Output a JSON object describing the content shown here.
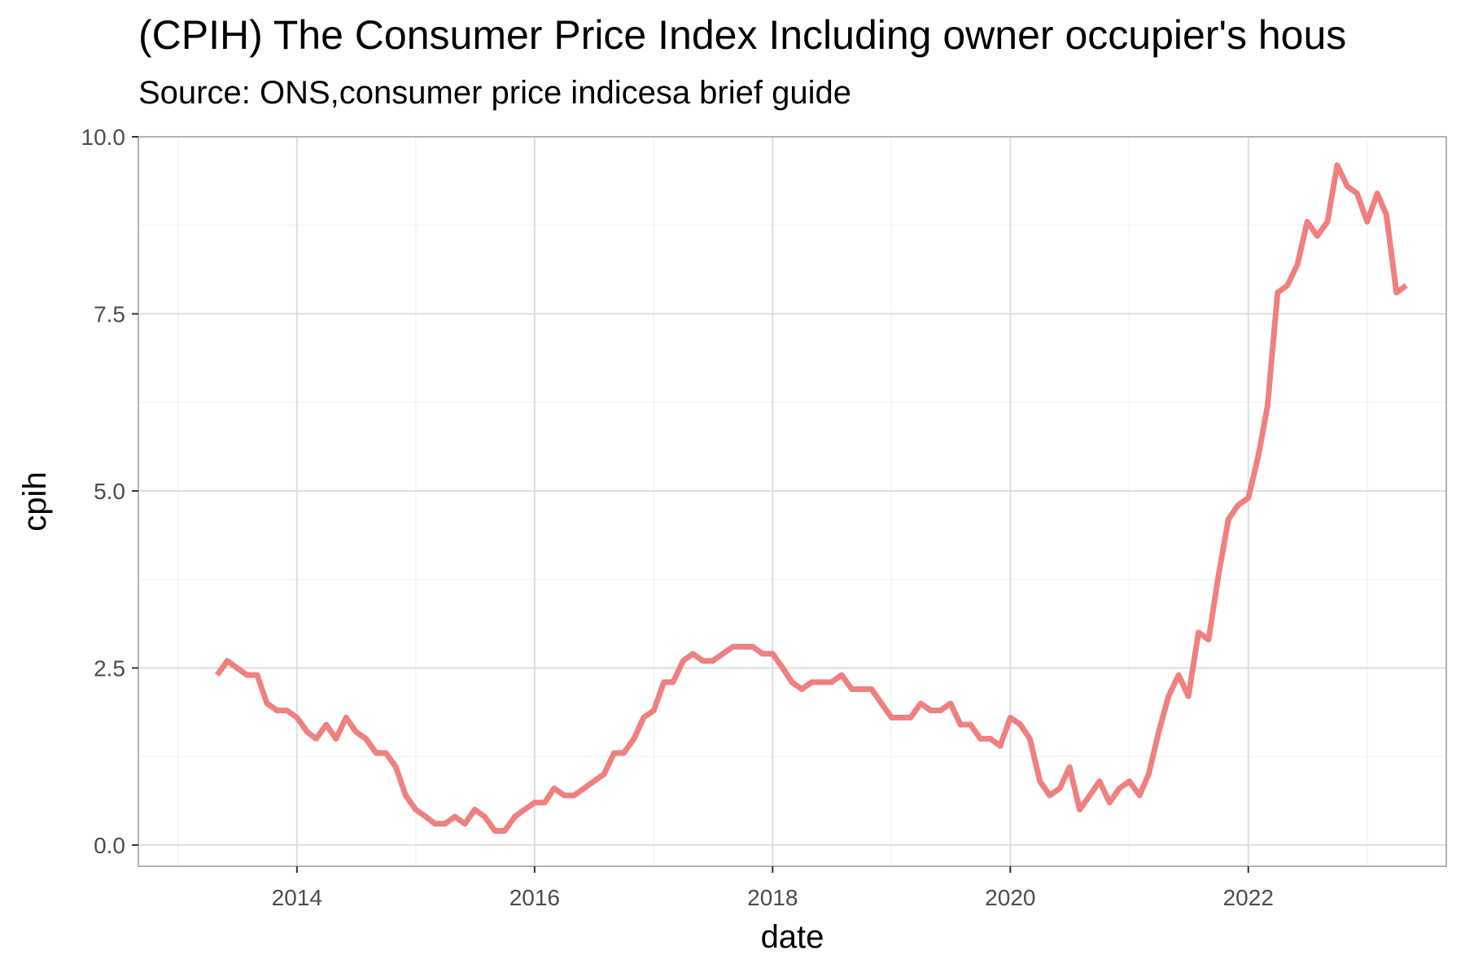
{
  "chart_data": {
    "type": "line",
    "title": "(CPIH) The Consumer Price Index Including owner occupier's hous",
    "subtitle": "Source: ONS,consumer price indicesa brief guide",
    "xlabel": "date",
    "ylabel": "cpih",
    "xlim": [
      "2012-09-01",
      "2023-09-01"
    ],
    "ylim": [
      -0.3,
      10.0
    ],
    "x_ticks": [
      {
        "value": "2014-01-01",
        "label": "2014"
      },
      {
        "value": "2016-01-01",
        "label": "2016"
      },
      {
        "value": "2018-01-01",
        "label": "2018"
      },
      {
        "value": "2020-01-01",
        "label": "2020"
      },
      {
        "value": "2022-01-01",
        "label": "2022"
      }
    ],
    "x_minor_ticks": [
      "2013-01-01",
      "2015-01-01",
      "2017-01-01",
      "2019-01-01",
      "2021-01-01",
      "2023-01-01"
    ],
    "y_ticks": [
      {
        "value": 0.0,
        "label": "0.0"
      },
      {
        "value": 2.5,
        "label": "2.5"
      },
      {
        "value": 5.0,
        "label": "5.0"
      },
      {
        "value": 7.5,
        "label": "7.5"
      },
      {
        "value": 10.0,
        "label": "10.0"
      }
    ],
    "y_minor_ticks": [
      1.25,
      3.75,
      6.25,
      8.75
    ],
    "grid": true,
    "line_color": "#F08080",
    "series": [
      {
        "x": [
          "2013-05",
          "2013-06",
          "2013-07",
          "2013-08",
          "2013-09",
          "2013-10",
          "2013-11",
          "2013-12",
          "2014-01",
          "2014-02",
          "2014-03",
          "2014-04",
          "2014-05",
          "2014-06",
          "2014-07",
          "2014-08",
          "2014-09",
          "2014-10",
          "2014-11",
          "2014-12",
          "2015-01",
          "2015-02",
          "2015-03",
          "2015-04",
          "2015-05",
          "2015-06",
          "2015-07",
          "2015-08",
          "2015-09",
          "2015-10",
          "2015-11",
          "2015-12",
          "2016-01",
          "2016-02",
          "2016-03",
          "2016-04",
          "2016-05",
          "2016-06",
          "2016-07",
          "2016-08",
          "2016-09",
          "2016-10",
          "2016-11",
          "2016-12",
          "2017-01",
          "2017-02",
          "2017-03",
          "2017-04",
          "2017-05",
          "2017-06",
          "2017-07",
          "2017-08",
          "2017-09",
          "2017-10",
          "2017-11",
          "2017-12",
          "2018-01",
          "2018-02",
          "2018-03",
          "2018-04",
          "2018-05",
          "2018-06",
          "2018-07",
          "2018-08",
          "2018-09",
          "2018-10",
          "2018-11",
          "2018-12",
          "2019-01",
          "2019-02",
          "2019-03",
          "2019-04",
          "2019-05",
          "2019-06",
          "2019-07",
          "2019-08",
          "2019-09",
          "2019-10",
          "2019-11",
          "2019-12",
          "2020-01",
          "2020-02",
          "2020-03",
          "2020-04",
          "2020-05",
          "2020-06",
          "2020-07",
          "2020-08",
          "2020-09",
          "2020-10",
          "2020-11",
          "2020-12",
          "2021-01",
          "2021-02",
          "2021-03",
          "2021-04",
          "2021-05",
          "2021-06",
          "2021-07",
          "2021-08",
          "2021-09",
          "2021-10",
          "2021-11",
          "2021-12",
          "2022-01",
          "2022-02",
          "2022-03",
          "2022-04",
          "2022-05",
          "2022-06",
          "2022-07",
          "2022-08",
          "2022-09",
          "2022-10",
          "2022-11",
          "2022-12",
          "2023-01",
          "2023-02",
          "2023-03",
          "2023-04",
          "2023-05"
        ],
        "values": [
          2.4,
          2.6,
          2.5,
          2.4,
          2.4,
          2.0,
          1.9,
          1.9,
          1.8,
          1.6,
          1.5,
          1.7,
          1.5,
          1.8,
          1.6,
          1.5,
          1.3,
          1.3,
          1.1,
          0.7,
          0.5,
          0.4,
          0.3,
          0.3,
          0.4,
          0.3,
          0.5,
          0.4,
          0.2,
          0.2,
          0.4,
          0.5,
          0.6,
          0.6,
          0.8,
          0.7,
          0.7,
          0.8,
          0.9,
          1.0,
          1.3,
          1.3,
          1.5,
          1.8,
          1.9,
          2.3,
          2.3,
          2.6,
          2.7,
          2.6,
          2.6,
          2.7,
          2.8,
          2.8,
          2.8,
          2.7,
          2.7,
          2.5,
          2.3,
          2.2,
          2.3,
          2.3,
          2.3,
          2.4,
          2.2,
          2.2,
          2.2,
          2.0,
          1.8,
          1.8,
          1.8,
          2.0,
          1.9,
          1.9,
          2.0,
          1.7,
          1.7,
          1.5,
          1.5,
          1.4,
          1.8,
          1.7,
          1.5,
          0.9,
          0.7,
          0.8,
          1.1,
          0.5,
          0.7,
          0.9,
          0.6,
          0.8,
          0.9,
          0.7,
          1.0,
          1.6,
          2.1,
          2.4,
          2.1,
          3.0,
          2.9,
          3.8,
          4.6,
          4.8,
          4.9,
          5.5,
          6.2,
          7.8,
          7.9,
          8.2,
          8.8,
          8.6,
          8.8,
          9.6,
          9.3,
          9.2,
          8.8,
          9.2,
          8.9,
          7.8,
          7.9
        ]
      }
    ]
  }
}
